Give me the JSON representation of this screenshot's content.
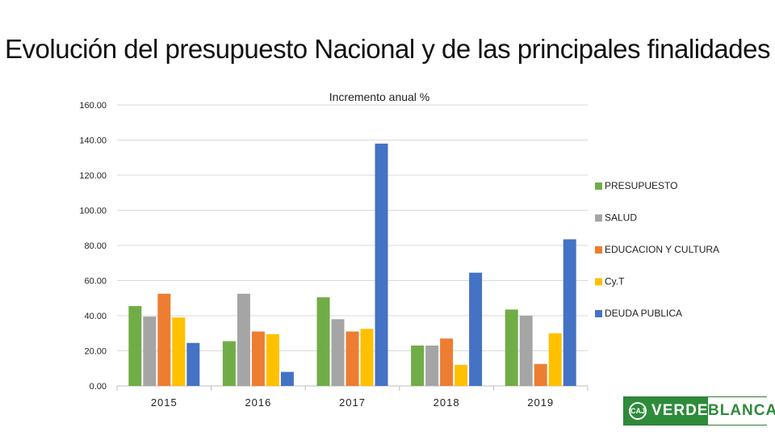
{
  "slide": {
    "title": "Evolución del presupuesto Nacional y de las principales finalidades"
  },
  "chart_data": {
    "type": "bar",
    "title": "Incremento anual %",
    "categories": [
      "2015",
      "2016",
      "2017",
      "2018",
      "2019"
    ],
    "ylim": [
      0,
      160
    ],
    "yticks": [
      "0.00",
      "20.00",
      "40.00",
      "60.00",
      "80.00",
      "100.00",
      "120.00",
      "140.00",
      "160.00"
    ],
    "grid": true,
    "legend_position": "right",
    "series": [
      {
        "name": "PRESUPUESTO",
        "color": "#70ad47",
        "values": [
          45.5,
          25.5,
          50.5,
          23.0,
          43.5
        ]
      },
      {
        "name": "SALUD",
        "color": "#a5a5a5",
        "values": [
          39.5,
          52.5,
          38.0,
          23.0,
          40.0
        ]
      },
      {
        "name": "EDUCACION Y CULTURA",
        "color": "#ed7d31",
        "values": [
          52.5,
          31.0,
          31.0,
          27.0,
          12.5
        ]
      },
      {
        "name": "Cy.T",
        "color": "#ffc000",
        "values": [
          39.0,
          29.5,
          32.5,
          12.0,
          30.0
        ]
      },
      {
        "name": "DEUDA PUBLICA",
        "color": "#4472c4",
        "values": [
          24.5,
          8.0,
          138.0,
          64.5,
          83.5
        ]
      }
    ]
  },
  "logo": {
    "badge": "CAJ",
    "left_text": "VERDE",
    "right_text": "BLANCA"
  }
}
